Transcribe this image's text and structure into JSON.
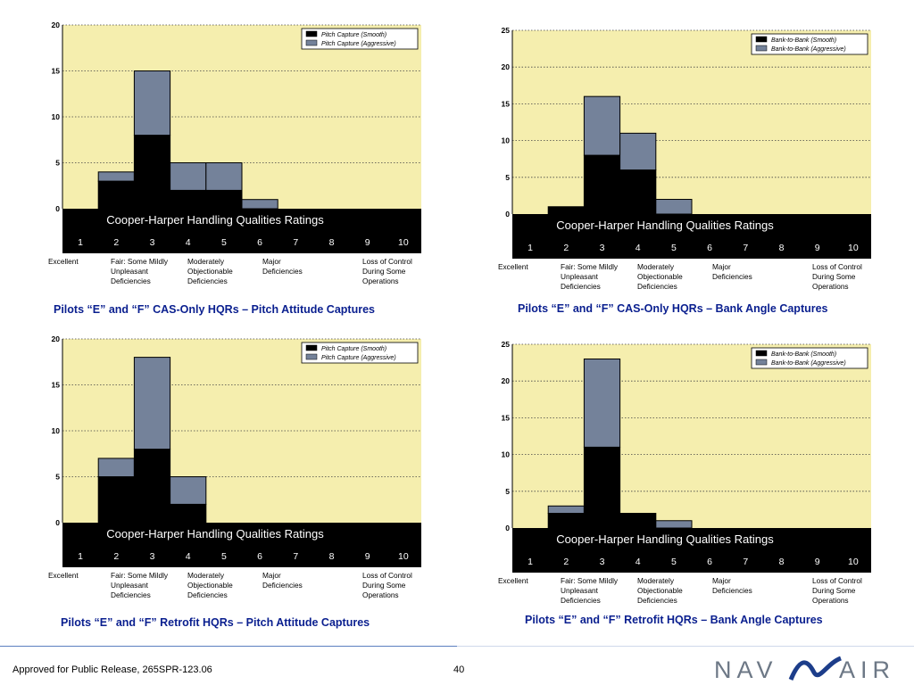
{
  "footer": {
    "release": "Approved for Public Release, 265SPR-123.06",
    "page": "40",
    "logo_left": "NAV",
    "logo_right": "AIR"
  },
  "colors": {
    "plot_bg": "#f5eeae",
    "smooth": "#000000",
    "aggressive": "#74829a",
    "band": "#000000",
    "caption": "#0a1f8f"
  },
  "scale": {
    "title": "Cooper-Harper Handling Qualities Ratings",
    "ratings": [
      "1",
      "2",
      "3",
      "4",
      "5",
      "6",
      "7",
      "8",
      "9",
      "10"
    ],
    "categories": [
      {
        "lines": [
          "Excellent"
        ]
      },
      {
        "lines": [
          "Fair: Some Mildly",
          "Unpleasant",
          "Deficiencies"
        ]
      },
      {
        "lines": [
          "Moderately",
          "Objectionable",
          "Deficiencies"
        ]
      },
      {
        "lines": [
          "Major",
          "Deficiencies"
        ]
      },
      {
        "lines": [
          "Loss of Control",
          "During Some",
          "Operations"
        ]
      }
    ]
  },
  "chart_data": [
    {
      "type": "bar",
      "title": "Pilots “E” and “F” CAS-Only HQRs – Pitch Attitude Captures",
      "categories": [
        "1",
        "2",
        "3",
        "4",
        "5",
        "6",
        "7",
        "8",
        "9",
        "10"
      ],
      "ylim": [
        0,
        20
      ],
      "yticks": [
        "0",
        "5",
        "10",
        "15",
        "20"
      ],
      "series": [
        {
          "name": "Pitch Capture (Smooth)",
          "values": [
            0,
            3,
            8,
            2,
            2,
            0,
            0,
            0,
            0,
            0
          ]
        },
        {
          "name": "Pitch Capture (Aggressive)",
          "values": [
            0,
            1,
            7,
            3,
            3,
            1,
            0,
            0,
            0,
            0
          ]
        }
      ]
    },
    {
      "type": "bar",
      "title": "Pilots “E” and “F” CAS-Only HQRs – Bank Angle Captures",
      "categories": [
        "1",
        "2",
        "3",
        "4",
        "5",
        "6",
        "7",
        "8",
        "9",
        "10"
      ],
      "ylim": [
        0,
        25
      ],
      "yticks": [
        "0",
        "5",
        "10",
        "15",
        "20",
        "25"
      ],
      "series": [
        {
          "name": "Bank-to-Bank (Smooth)",
          "values": [
            0,
            1,
            8,
            6,
            0,
            0,
            0,
            0,
            0,
            0
          ]
        },
        {
          "name": "Bank-to-Bank (Aggressive)",
          "values": [
            0,
            0,
            8,
            5,
            2,
            0,
            0,
            0,
            0,
            0
          ]
        }
      ]
    },
    {
      "type": "bar",
      "title": "Pilots “E” and “F” Retrofit HQRs – Pitch Attitude Captures",
      "categories": [
        "1",
        "2",
        "3",
        "4",
        "5",
        "6",
        "7",
        "8",
        "9",
        "10"
      ],
      "ylim": [
        0,
        20
      ],
      "yticks": [
        "0",
        "5",
        "10",
        "15",
        "20"
      ],
      "series": [
        {
          "name": "Pitch Capture (Smooth)",
          "values": [
            0,
            5,
            8,
            2,
            0,
            0,
            0,
            0,
            0,
            0
          ]
        },
        {
          "name": "Pitch Capture (Aggressive)",
          "values": [
            0,
            2,
            10,
            3,
            0,
            0,
            0,
            0,
            0,
            0
          ]
        }
      ]
    },
    {
      "type": "bar",
      "title": "Pilots “E” and “F” Retrofit HQRs – Bank Angle Captures",
      "categories": [
        "1",
        "2",
        "3",
        "4",
        "5",
        "6",
        "7",
        "8",
        "9",
        "10"
      ],
      "ylim": [
        0,
        25
      ],
      "yticks": [
        "0",
        "5",
        "10",
        "15",
        "20",
        "25"
      ],
      "series": [
        {
          "name": "Bank-to-Bank (Smooth)",
          "values": [
            0,
            2,
            11,
            2,
            0,
            0,
            0,
            0,
            0,
            0
          ]
        },
        {
          "name": "Bank-to-Bank (Aggressive)",
          "values": [
            0,
            1,
            12,
            0,
            1,
            0,
            0,
            0,
            0,
            0
          ]
        }
      ]
    }
  ]
}
